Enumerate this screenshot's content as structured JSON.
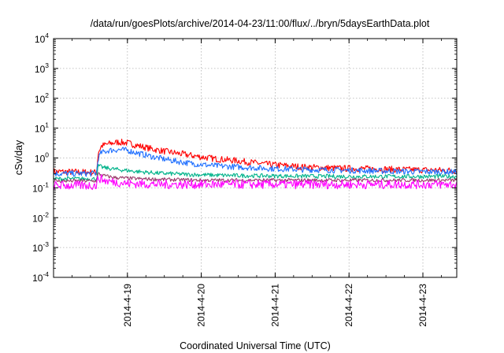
{
  "chart_data": {
    "type": "line",
    "title": "/data/run/goesPlots/archive/2014-04-23/11:00/flux/../bryn/5daysEarthData.plot",
    "xlabel": "Coordinated Universal Time (UTC)",
    "ylabel": "cSv/day",
    "y_scale": "log",
    "ylim": [
      0.0001,
      10000
    ],
    "y_ticks": [
      {
        "base": "10",
        "exp": "-4",
        "value": 0.0001
      },
      {
        "base": "10",
        "exp": "-3",
        "value": 0.001
      },
      {
        "base": "10",
        "exp": "-2",
        "value": 0.01
      },
      {
        "base": "10",
        "exp": "-1",
        "value": 0.1
      },
      {
        "base": "10",
        "exp": "0",
        "value": 1
      },
      {
        "base": "10",
        "exp": "1",
        "value": 10
      },
      {
        "base": "10",
        "exp": "2",
        "value": 100
      },
      {
        "base": "10",
        "exp": "3",
        "value": 1000
      },
      {
        "base": "10",
        "exp": "4",
        "value": 10000
      }
    ],
    "xlim": [
      "2014-04-18 00:00",
      "2014-04-23 11:00"
    ],
    "x_ticks": [
      {
        "label": "2014-4-19",
        "value": "2014-04-19 00:00"
      },
      {
        "label": "2014-4-20",
        "value": "2014-04-20 00:00"
      },
      {
        "label": "2014-4-21",
        "value": "2014-04-21 00:00"
      },
      {
        "label": "2014-4-22",
        "value": "2014-04-22 00:00"
      },
      {
        "label": "2014-4-23",
        "value": "2014-04-23 00:00"
      }
    ],
    "grid": true,
    "legend": "none",
    "series": [
      {
        "color": "#ff0000",
        "x": [
          "2014-04-18 00:00",
          "2014-04-18 14:00",
          "2014-04-18 14:30",
          "2014-04-18 15:30",
          "2014-04-18 18:00",
          "2014-04-18 21:00",
          "2014-04-19 00:00",
          "2014-04-19 04:00",
          "2014-04-19 09:00",
          "2014-04-19 15:00",
          "2014-04-19 21:00",
          "2014-04-20 04:00",
          "2014-04-20 12:00",
          "2014-04-20 21:00",
          "2014-04-21 09:00",
          "2014-04-21 21:00",
          "2014-04-22 09:00",
          "2014-04-22 21:00",
          "2014-04-23 11:00"
        ],
        "y": [
          0.35,
          0.33,
          1.5,
          2.5,
          3.0,
          3.4,
          3.2,
          2.5,
          1.9,
          1.5,
          1.2,
          0.95,
          0.8,
          0.62,
          0.5,
          0.45,
          0.43,
          0.4,
          0.38
        ]
      },
      {
        "color": "#1f6fff",
        "x": [
          "2014-04-18 00:00",
          "2014-04-18 14:00",
          "2014-04-18 14:30",
          "2014-04-18 15:30",
          "2014-04-18 18:00",
          "2014-04-18 21:00",
          "2014-04-19 00:00",
          "2014-04-19 04:00",
          "2014-04-19 09:00",
          "2014-04-19 15:00",
          "2014-04-19 21:00",
          "2014-04-20 04:00",
          "2014-04-20 12:00",
          "2014-04-20 21:00",
          "2014-04-21 09:00",
          "2014-04-21 21:00",
          "2014-04-22 09:00",
          "2014-04-22 21:00",
          "2014-04-23 11:00"
        ],
        "y": [
          0.3,
          0.3,
          1.0,
          1.5,
          1.8,
          1.9,
          1.8,
          1.4,
          1.05,
          0.8,
          0.65,
          0.55,
          0.5,
          0.45,
          0.41,
          0.39,
          0.37,
          0.35,
          0.34
        ]
      },
      {
        "color": "#00b38a",
        "x": [
          "2014-04-18 00:00",
          "2014-04-18 14:00",
          "2014-04-18 14:30",
          "2014-04-18 16:00",
          "2014-04-18 20:00",
          "2014-04-19 02:00",
          "2014-04-19 10:00",
          "2014-04-19 20:00",
          "2014-04-20 08:00",
          "2014-04-21 00:00",
          "2014-04-22 00:00",
          "2014-04-23 11:00"
        ],
        "y": [
          0.2,
          0.2,
          0.55,
          0.48,
          0.42,
          0.36,
          0.31,
          0.28,
          0.26,
          0.25,
          0.24,
          0.24
        ]
      },
      {
        "color": "#9a3a6a",
        "x": [
          "2014-04-18 00:00",
          "2014-04-18 14:00",
          "2014-04-18 14:30",
          "2014-04-18 16:00",
          "2014-04-18 20:00",
          "2014-04-19 04:00",
          "2014-04-19 12:00",
          "2014-04-20 00:00",
          "2014-04-21 00:00",
          "2014-04-22 00:00",
          "2014-04-23 11:00"
        ],
        "y": [
          0.17,
          0.17,
          0.3,
          0.26,
          0.22,
          0.2,
          0.19,
          0.18,
          0.18,
          0.18,
          0.18
        ]
      },
      {
        "color": "#ff00ff",
        "x": [
          "2014-04-18 00:00",
          "2014-04-18 14:00",
          "2014-04-18 14:30",
          "2014-04-18 17:00",
          "2014-04-19 00:00",
          "2014-04-19 12:00",
          "2014-04-20 00:00",
          "2014-04-21 00:00",
          "2014-04-22 00:00",
          "2014-04-23 11:00"
        ],
        "y": [
          0.12,
          0.12,
          0.22,
          0.17,
          0.14,
          0.13,
          0.13,
          0.13,
          0.13,
          0.13
        ]
      }
    ]
  }
}
